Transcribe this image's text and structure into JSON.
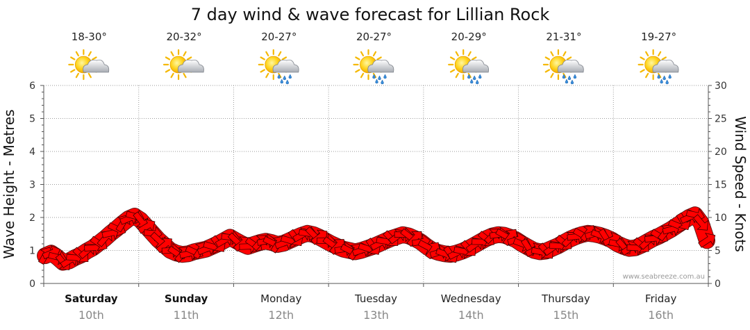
{
  "chart_data": {
    "type": "line",
    "title": "7 day wind & wave forecast for Lillian Rock",
    "ylabel_left": "Wave Height - Metres",
    "ylabel_right": "Wind Speed - Knots",
    "ylim_left": [
      0,
      6
    ],
    "yticks_left": [
      "0",
      "1",
      "2",
      "3",
      "4",
      "5",
      "6"
    ],
    "ylim_right": [
      0,
      30
    ],
    "yticks_right": [
      "0",
      "5",
      "10",
      "15",
      "20",
      "25",
      "30"
    ],
    "grid": true,
    "days": [
      {
        "name": "Saturday",
        "date": "10th",
        "bold": true,
        "temp": "18-30°",
        "icon": "sun-cloud-icon"
      },
      {
        "name": "Sunday",
        "date": "11th",
        "bold": true,
        "temp": "20-32°",
        "icon": "sun-cloud-icon"
      },
      {
        "name": "Monday",
        "date": "12th",
        "bold": false,
        "temp": "20-27°",
        "icon": "sun-cloud-rain-icon"
      },
      {
        "name": "Tuesday",
        "date": "13th",
        "bold": false,
        "temp": "20-27°",
        "icon": "sun-cloud-rain-icon"
      },
      {
        "name": "Wednesday",
        "date": "14th",
        "bold": false,
        "temp": "20-29°",
        "icon": "sun-cloud-rain-icon"
      },
      {
        "name": "Thursday",
        "date": "15th",
        "bold": false,
        "temp": "21-31°",
        "icon": "sun-cloud-rain-icon"
      },
      {
        "name": "Friday",
        "date": "16th",
        "bold": false,
        "temp": "19-27°",
        "icon": "sun-cloud-rain-icon"
      }
    ],
    "series": [
      {
        "name": "Wind Speed",
        "color": "#ff0000",
        "points_per_day": 16,
        "values": [
          4.2,
          4.6,
          4.0,
          3.2,
          3.4,
          3.9,
          4.3,
          4.9,
          5.4,
          6.1,
          6.8,
          7.6,
          8.3,
          9.1,
          9.8,
          10.2,
          9.6,
          8.6,
          7.6,
          6.6,
          5.8,
          5.0,
          4.6,
          4.4,
          4.5,
          4.8,
          5.0,
          5.2,
          5.6,
          6.0,
          6.5,
          7.0,
          6.5,
          6.0,
          5.6,
          5.9,
          6.2,
          6.4,
          6.2,
          5.9,
          6.1,
          6.5,
          6.9,
          7.3,
          7.6,
          7.4,
          7.0,
          6.5,
          6.0,
          5.6,
          5.2,
          5.0,
          4.8,
          5.0,
          5.3,
          5.6,
          6.0,
          6.4,
          6.8,
          7.1,
          7.4,
          7.2,
          6.8,
          6.3,
          5.6,
          5.0,
          4.7,
          4.5,
          4.4,
          4.6,
          4.9,
          5.3,
          5.8,
          6.3,
          6.8,
          7.2,
          7.4,
          7.3,
          7.0,
          6.6,
          6.0,
          5.5,
          5.0,
          4.8,
          4.9,
          5.3,
          5.7,
          6.2,
          6.7,
          7.1,
          7.4,
          7.6,
          7.5,
          7.3,
          7.0,
          6.6,
          6.0,
          5.6,
          5.3,
          5.4,
          5.8,
          6.3,
          6.8,
          7.2,
          7.7,
          8.2,
          8.8,
          9.4,
          10.0,
          10.4,
          9.2,
          6.5
        ]
      }
    ]
  },
  "watermark": "www.seabreeze.com.au"
}
